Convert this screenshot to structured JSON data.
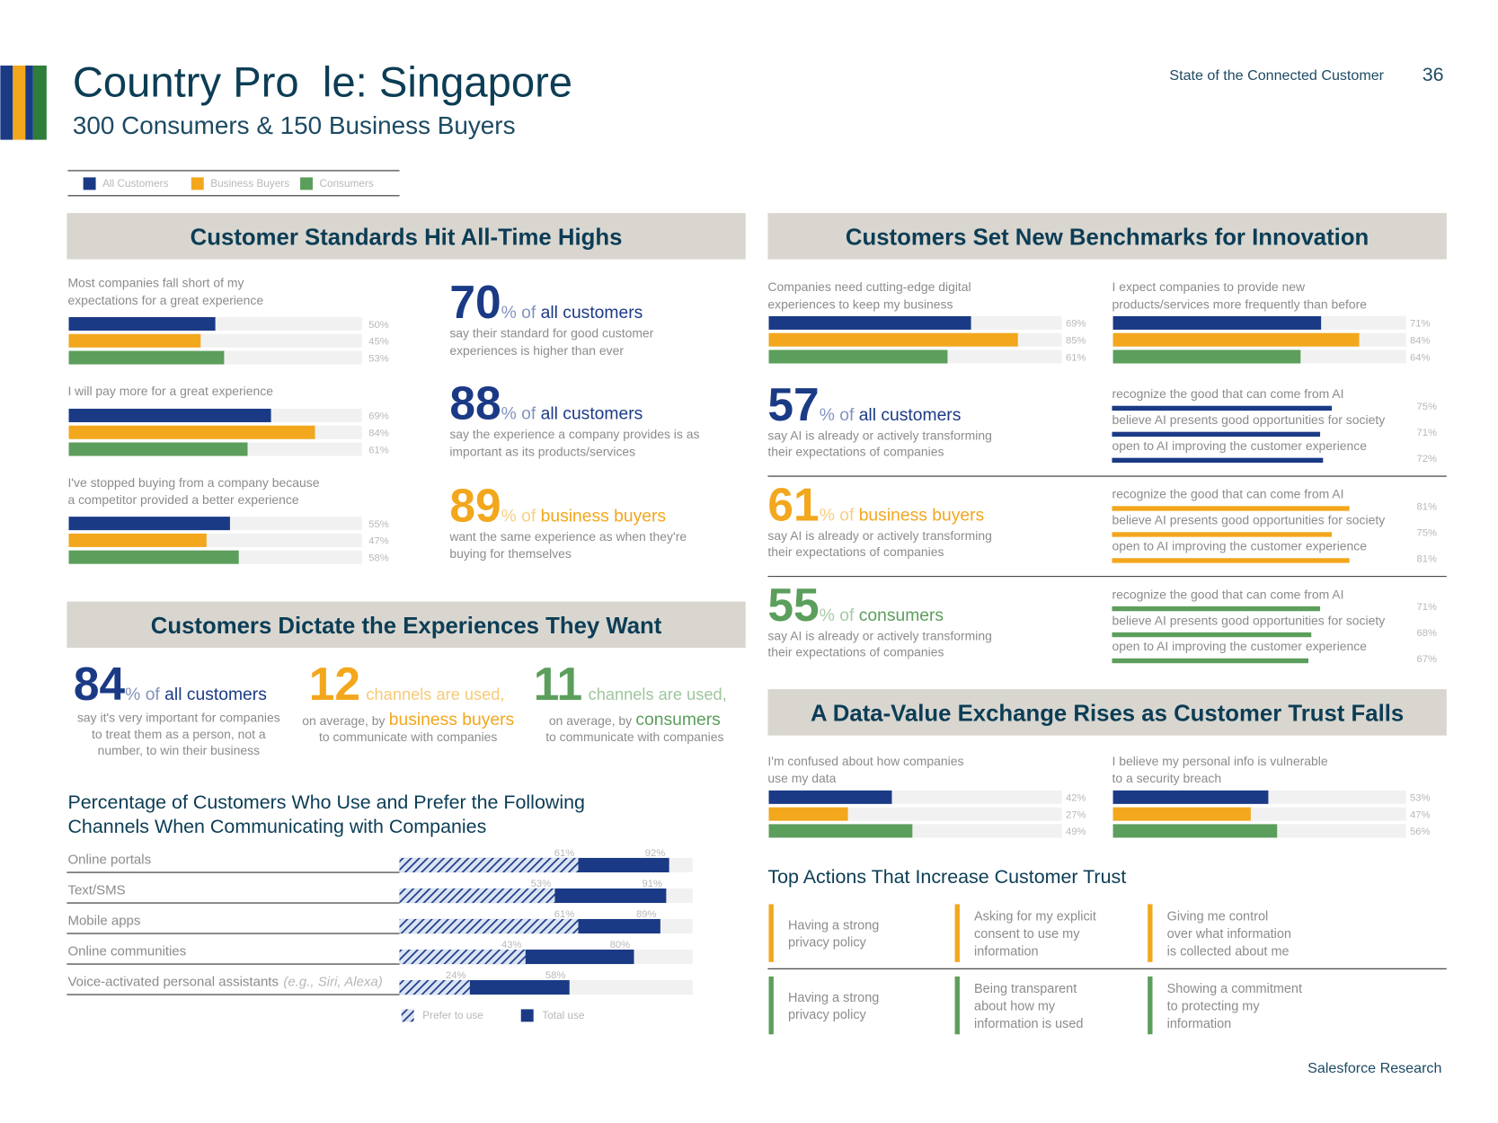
{
  "header": {
    "title": "Country Pro  le: Singapore",
    "subtitle": "300 Consumers & 150 Business Buyers",
    "report": "State of the Connected Customer",
    "page": "36"
  },
  "legend": [
    {
      "label": "All Customers",
      "color": "#1b3a86"
    },
    {
      "label": "Business Buyers",
      "color": "#f2a71d"
    },
    {
      "label": "Consumers",
      "color": "#5c9e5c"
    }
  ],
  "standards": {
    "title": "Customer Standards Hit All-Time Highs",
    "groups": [
      {
        "label": [
          "Most companies fall short of my",
          "expectations for a great experience"
        ],
        "values": [
          50,
          45,
          53
        ],
        "value_labels": [
          "50%",
          "45%",
          "53%"
        ]
      },
      {
        "label": [
          "I will pay more for a great experience"
        ],
        "values": [
          69,
          84,
          61
        ],
        "value_labels": [
          "69%",
          "84%",
          "61%"
        ]
      },
      {
        "label": [
          "I've stopped buying from a company because",
          "a competitor provided a better experience"
        ],
        "values": [
          55,
          47,
          58
        ],
        "value_labels": [
          "55%",
          "47%",
          "58%"
        ]
      }
    ],
    "stats": [
      {
        "number": 70,
        "unit": "% of",
        "who": "all customers",
        "color": "#1b3a86",
        "text": [
          "say their standard for good customer",
          "experiences is higher than ever"
        ]
      },
      {
        "number": 88,
        "unit": "% of",
        "who": "all customers",
        "color": "#1b3a86",
        "text": [
          "say the experience a company provides is as",
          "important as its products/services"
        ]
      },
      {
        "number": 89,
        "unit": "% of",
        "who": "business buyers",
        "color": "#f2a71d",
        "text": [
          "want the same experience as when they're",
          "buying for themselves"
        ]
      }
    ]
  },
  "dictate": {
    "title": "Customers Dictate the Experiences They Want",
    "main": {
      "number": 84,
      "unit": "% of",
      "who": "all customers",
      "color": "#1b3a86",
      "text": [
        "say it's very important for companies",
        "to treat them as a person, not a",
        "number, to win their business"
      ]
    },
    "channels": [
      {
        "number": 12,
        "unit": "channels are used,",
        "prefix": "on average, by",
        "who": "business buyers",
        "text": "to communicate with companies",
        "color": "#f2a71d"
      },
      {
        "number": 11,
        "unit": "channels are used,",
        "prefix": "on average, by",
        "who": "consumers",
        "text": "to communicate with companies",
        "color": "#5c9e5c"
      }
    ]
  },
  "channels_chart": {
    "title": [
      "Percentage of Customers Who Use and Prefer the Following",
      "Channels When Communicating with Companies"
    ],
    "categories": [
      "Online portals",
      "Text/SMS",
      "Mobile apps",
      "Online communities",
      "Voice-activated personal assistants"
    ],
    "category_notes": [
      null,
      null,
      null,
      null,
      "(e.g., Siri, Alexa)"
    ],
    "prefer": {
      "name": "Prefer to use",
      "color": "#1b3a86",
      "values": [
        61,
        53,
        61,
        43,
        24
      ],
      "value_labels": [
        "61%",
        "53%",
        "61%",
        "43%",
        "24%"
      ]
    },
    "total": {
      "name": "Total use",
      "color": "#1b3a86",
      "values": [
        92,
        91,
        89,
        80,
        58
      ],
      "value_labels": [
        "92%",
        "91%",
        "89%",
        "80%",
        "58%"
      ]
    }
  },
  "innovation": {
    "title": "Customers Set New Benchmarks for Innovation",
    "groups": [
      {
        "label": [
          "Companies need cutting-edge digital",
          "experiences to keep my business"
        ],
        "values": [
          69,
          85,
          61
        ],
        "value_labels": [
          "69%",
          "85%",
          "61%"
        ]
      },
      {
        "label": [
          "I expect companies to provide new",
          "products/services more frequently than before"
        ],
        "values": [
          71,
          84,
          64
        ],
        "value_labels": [
          "71%",
          "84%",
          "64%"
        ]
      }
    ],
    "ai": [
      {
        "number": 57,
        "unit": "% of",
        "who": "all customers",
        "color": "#1b3a86",
        "text": [
          "say AI is already or actively transforming",
          "their expectations of companies"
        ],
        "items": [
          {
            "label": "recognize the good that can come from AI",
            "value": 75,
            "value_label": "75%"
          },
          {
            "label": "believe AI presents good opportunities for society",
            "value": 71,
            "value_label": "71%"
          },
          {
            "label": "open to AI improving the customer experience",
            "value": 72,
            "value_label": "72%"
          }
        ]
      },
      {
        "number": 61,
        "unit": "% of",
        "who": "business buyers",
        "color": "#f2a71d",
        "text": [
          "say AI is already or actively transforming",
          "their expectations of companies"
        ],
        "items": [
          {
            "label": "recognize the good that can come from AI",
            "value": 81,
            "value_label": "81%"
          },
          {
            "label": "believe AI presents good opportunities for society",
            "value": 75,
            "value_label": "75%"
          },
          {
            "label": "open to AI improving the customer experience",
            "value": 81,
            "value_label": "81%"
          }
        ]
      },
      {
        "number": 55,
        "unit": "% of",
        "who": "consumers",
        "color": "#5c9e5c",
        "text": [
          "say AI is already or actively transforming",
          "their expectations of companies"
        ],
        "items": [
          {
            "label": "recognize the good that can come from AI",
            "value": 71,
            "value_label": "71%"
          },
          {
            "label": "believe AI presents good opportunities for society",
            "value": 68,
            "value_label": "68%"
          },
          {
            "label": "open to AI improving the customer experience",
            "value": 67,
            "value_label": "67%"
          }
        ]
      }
    ]
  },
  "trust": {
    "title": "A Data-Value Exchange Rises as Customer Trust Falls",
    "groups": [
      {
        "label": [
          "I'm confused about how companies",
          "use my data"
        ],
        "values": [
          42,
          27,
          49
        ],
        "value_labels": [
          "42%",
          "27%",
          "49%"
        ]
      },
      {
        "label": [
          "I believe my personal info is vulnerable",
          "to a security breach"
        ],
        "values": [
          53,
          47,
          56
        ],
        "value_labels": [
          "53%",
          "47%",
          "56%"
        ]
      }
    ],
    "actions_title": "Top Actions That Increase Customer Trust",
    "rows": [
      {
        "color": "#f2a71d",
        "items": [
          [
            "Having a strong",
            "privacy policy"
          ],
          [
            "Asking for my explicit",
            "consent to use my",
            "information"
          ],
          [
            "Giving me control",
            "over what information",
            "is collected about me"
          ]
        ]
      },
      {
        "color": "#5c9e5c",
        "items": [
          [
            "Having a strong",
            "privacy policy"
          ],
          [
            "Being transparent",
            "about how my",
            "information is used"
          ],
          [
            "Showing a commitment",
            "to protecting my",
            "information"
          ]
        ]
      }
    ]
  },
  "footer": "Salesforce Research"
}
